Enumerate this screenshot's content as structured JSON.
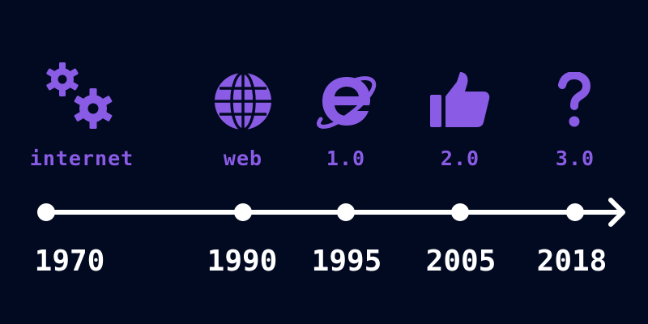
{
  "colors": {
    "background": "#020a22",
    "accent": "#8a5ce6",
    "timeline": "#ffffff"
  },
  "milestones": [
    {
      "era": "internet",
      "year": "1970",
      "icon": "gears-icon"
    },
    {
      "era": "web",
      "year": "1990",
      "icon": "globe-icon"
    },
    {
      "era": "1.0",
      "year": "1995",
      "icon": "internet-explorer-icon"
    },
    {
      "era": "2.0",
      "year": "2005",
      "icon": "thumbs-up-icon"
    },
    {
      "era": "3.0",
      "year": "2018",
      "icon": "question-mark-icon"
    }
  ]
}
